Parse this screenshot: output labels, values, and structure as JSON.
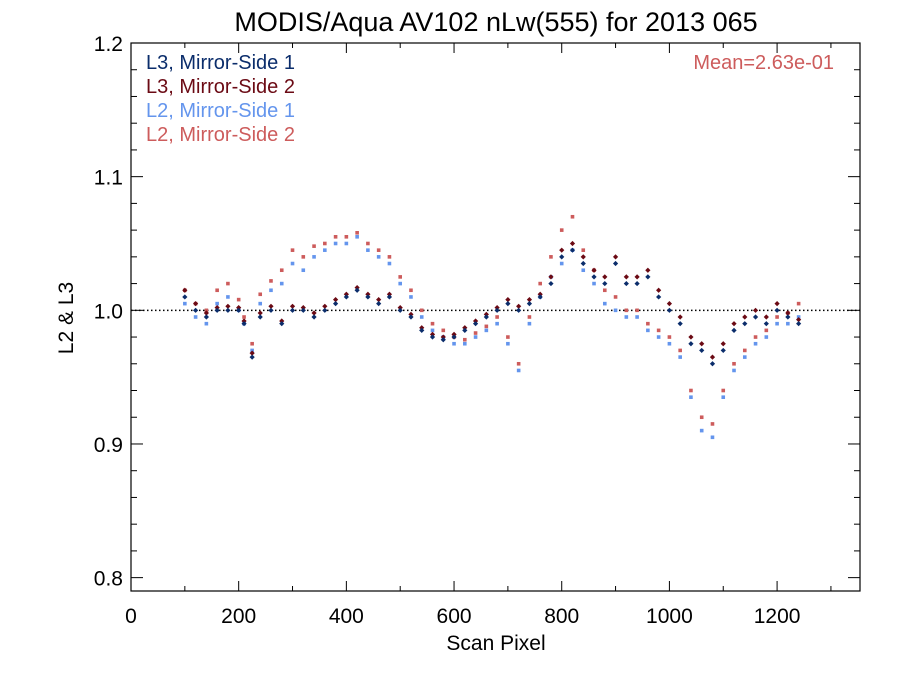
{
  "chart_data": {
    "type": "scatter",
    "title": "MODIS/Aqua AV102 nLw(555) for 2013 065",
    "xlabel": "Scan Pixel",
    "ylabel": "L2 & L3",
    "xlim": [
      0,
      1354
    ],
    "ylim": [
      0.79,
      1.2
    ],
    "xticks": [
      0,
      200,
      400,
      600,
      800,
      1000,
      1200
    ],
    "xtick_labels": [
      "0",
      "200",
      "400",
      "600",
      "800",
      "1000",
      "1200"
    ],
    "yticks": [
      0.8,
      0.9,
      1.0,
      1.1,
      1.2
    ],
    "ytick_labels": [
      "0.8",
      "0.9",
      "1.0",
      "1.1",
      "1.2"
    ],
    "reference_line": 1.0,
    "annotation": "Mean=2.63e-01",
    "annotation_color": "#cd5c5c",
    "legend_position": "top-left",
    "series": [
      {
        "name": "L3, Mirror-Side 1",
        "color": "#0b2d6b",
        "marker": "diamond",
        "x": [
          100,
          120,
          140,
          160,
          180,
          200,
          210,
          225,
          240,
          260,
          280,
          300,
          320,
          340,
          360,
          380,
          400,
          420,
          440,
          460,
          480,
          500,
          520,
          540,
          560,
          580,
          600,
          620,
          640,
          660,
          680,
          700,
          720,
          740,
          760,
          780,
          800,
          820,
          840,
          860,
          880,
          900,
          920,
          940,
          960,
          980,
          1000,
          1020,
          1040,
          1060,
          1080,
          1100,
          1120,
          1140,
          1160,
          1180,
          1200,
          1220,
          1240
        ],
        "y": [
          1.01,
          1.0,
          0.995,
          1.0,
          1.0,
          1.0,
          0.99,
          0.965,
          0.995,
          1.0,
          0.99,
          1.0,
          1.0,
          0.995,
          1.0,
          1.005,
          1.01,
          1.015,
          1.01,
          1.005,
          1.01,
          1.0,
          0.995,
          0.985,
          0.98,
          0.978,
          0.98,
          0.985,
          0.99,
          0.995,
          1.0,
          1.005,
          1.0,
          1.005,
          1.01,
          1.02,
          1.04,
          1.045,
          1.035,
          1.025,
          1.02,
          1.035,
          1.02,
          1.02,
          1.025,
          1.01,
          1.0,
          0.99,
          0.975,
          0.97,
          0.96,
          0.97,
          0.985,
          0.99,
          0.995,
          0.99,
          1.0,
          0.995,
          0.99
        ]
      },
      {
        "name": "L3, Mirror-Side 2",
        "color": "#6b0a14",
        "marker": "diamond",
        "x": [
          100,
          120,
          140,
          160,
          180,
          200,
          210,
          225,
          240,
          260,
          280,
          300,
          320,
          340,
          360,
          380,
          400,
          420,
          440,
          460,
          480,
          500,
          520,
          540,
          560,
          580,
          600,
          620,
          640,
          660,
          680,
          700,
          720,
          740,
          760,
          780,
          800,
          820,
          840,
          860,
          880,
          900,
          920,
          940,
          960,
          980,
          1000,
          1020,
          1040,
          1060,
          1080,
          1100,
          1120,
          1140,
          1160,
          1180,
          1200,
          1220,
          1240
        ],
        "y": [
          1.015,
          1.005,
          0.998,
          1.002,
          1.003,
          1.002,
          0.992,
          0.968,
          0.998,
          1.003,
          0.992,
          1.003,
          1.002,
          0.998,
          1.003,
          1.008,
          1.012,
          1.017,
          1.012,
          1.008,
          1.012,
          1.002,
          0.997,
          0.987,
          0.982,
          0.98,
          0.982,
          0.987,
          0.992,
          0.997,
          1.002,
          1.008,
          1.003,
          1.008,
          1.012,
          1.025,
          1.045,
          1.05,
          1.04,
          1.03,
          1.025,
          1.04,
          1.025,
          1.025,
          1.03,
          1.015,
          1.005,
          0.995,
          0.98,
          0.975,
          0.965,
          0.975,
          0.99,
          0.995,
          1.0,
          0.995,
          1.005,
          0.998,
          0.993
        ]
      },
      {
        "name": "L2, Mirror-Side 1",
        "color": "#6495ed",
        "marker": "square",
        "x": [
          100,
          120,
          140,
          160,
          180,
          200,
          210,
          225,
          240,
          260,
          280,
          300,
          320,
          340,
          360,
          380,
          400,
          420,
          440,
          460,
          480,
          500,
          520,
          540,
          560,
          580,
          600,
          620,
          640,
          660,
          680,
          700,
          720,
          740,
          760,
          780,
          800,
          820,
          840,
          860,
          880,
          900,
          920,
          940,
          960,
          980,
          1000,
          1020,
          1040,
          1060,
          1080,
          1100,
          1120,
          1140,
          1160,
          1180,
          1200,
          1220,
          1240
        ],
        "y": [
          1.005,
          0.995,
          0.99,
          1.005,
          1.01,
          1.0,
          0.99,
          0.97,
          1.005,
          1.015,
          1.02,
          1.035,
          1.03,
          1.04,
          1.045,
          1.05,
          1.05,
          1.055,
          1.045,
          1.04,
          1.035,
          1.02,
          1.01,
          0.995,
          0.985,
          0.98,
          0.975,
          0.975,
          0.98,
          0.985,
          0.99,
          0.975,
          0.955,
          0.99,
          1.01,
          1.025,
          1.035,
          1.045,
          1.03,
          1.02,
          1.005,
          1.0,
          0.995,
          0.995,
          0.985,
          0.98,
          0.975,
          0.965,
          0.935,
          0.91,
          0.905,
          0.935,
          0.955,
          0.965,
          0.975,
          0.98,
          0.99,
          0.99,
          0.995
        ]
      },
      {
        "name": "L2, Mirror-Side 2",
        "color": "#cd5c5c",
        "marker": "square",
        "x": [
          100,
          120,
          140,
          160,
          180,
          200,
          210,
          225,
          240,
          260,
          280,
          300,
          320,
          340,
          360,
          380,
          400,
          420,
          440,
          460,
          480,
          500,
          520,
          540,
          560,
          580,
          600,
          620,
          640,
          660,
          680,
          700,
          720,
          740,
          760,
          780,
          800,
          820,
          840,
          860,
          880,
          900,
          920,
          940,
          960,
          980,
          1000,
          1020,
          1040,
          1060,
          1080,
          1100,
          1120,
          1140,
          1160,
          1180,
          1200,
          1220,
          1240
        ],
        "y": [
          1.015,
          1.005,
          1.0,
          1.015,
          1.02,
          1.008,
          0.995,
          0.975,
          1.012,
          1.022,
          1.03,
          1.045,
          1.04,
          1.048,
          1.05,
          1.055,
          1.055,
          1.058,
          1.05,
          1.045,
          1.04,
          1.025,
          1.015,
          1.0,
          0.99,
          0.985,
          0.98,
          0.978,
          0.983,
          0.988,
          0.995,
          0.98,
          0.96,
          0.995,
          1.02,
          1.04,
          1.06,
          1.07,
          1.045,
          1.03,
          1.015,
          1.01,
          1.0,
          1.0,
          0.99,
          0.985,
          0.98,
          0.97,
          0.94,
          0.92,
          0.915,
          0.94,
          0.96,
          0.97,
          0.98,
          0.985,
          0.995,
          0.998,
          1.005
        ]
      }
    ]
  }
}
